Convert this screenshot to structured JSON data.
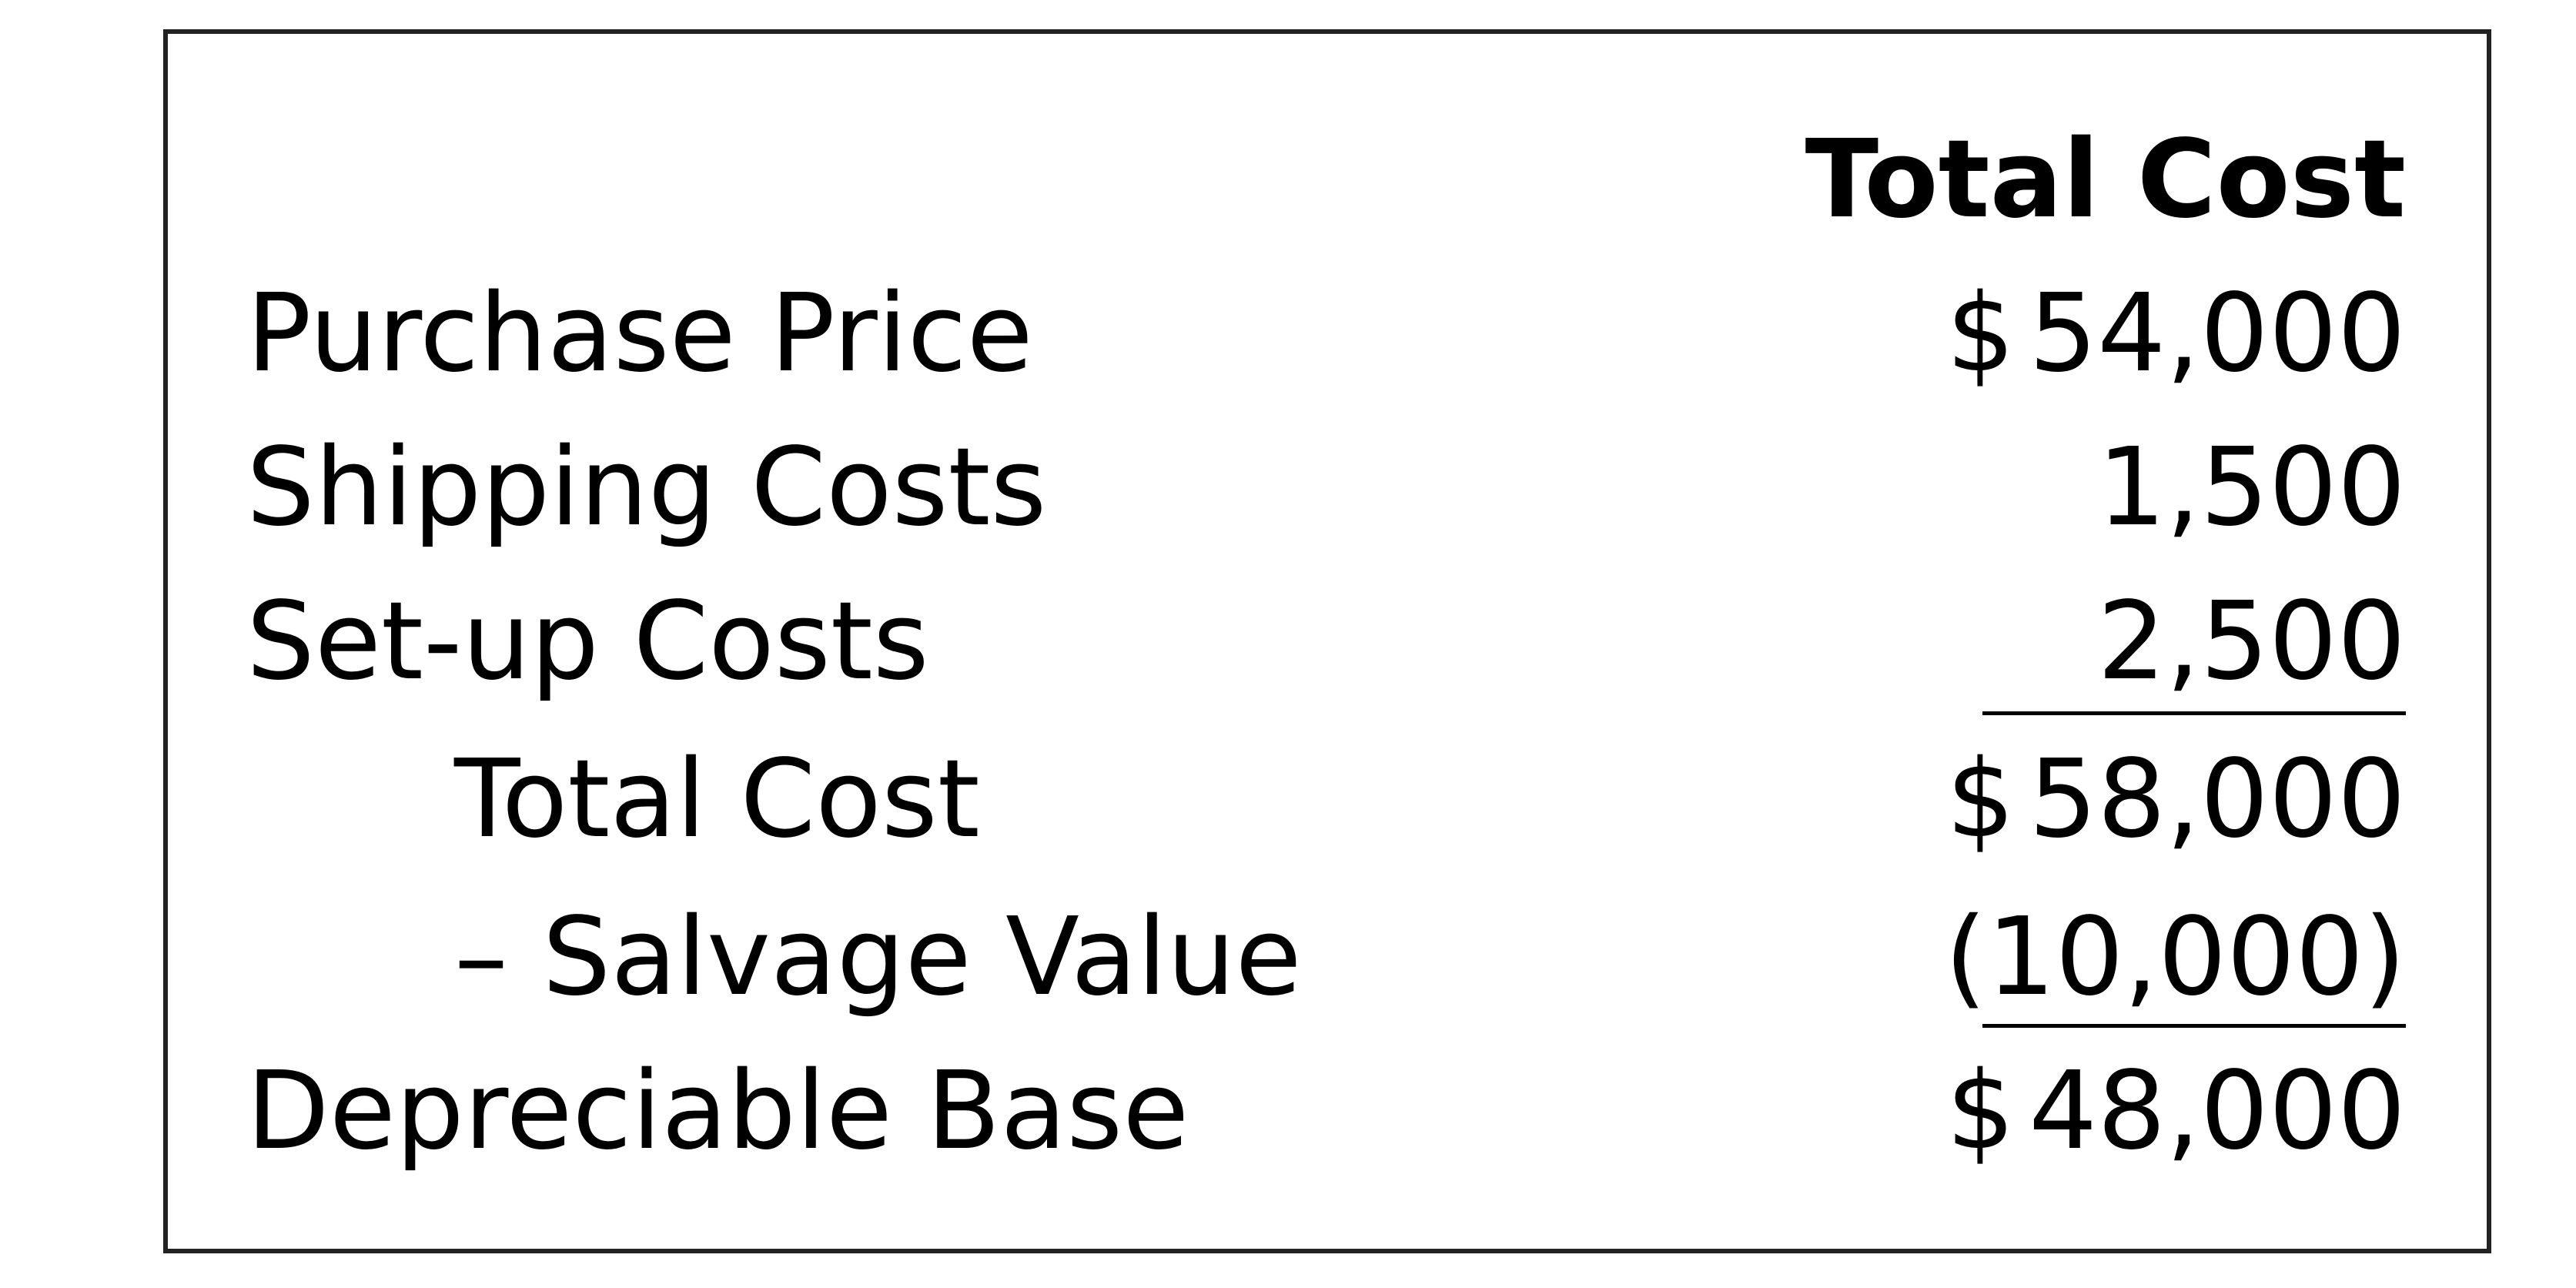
{
  "header": {
    "column_title": "Total Cost"
  },
  "rows": [
    {
      "label": "Purchase Price",
      "currency": "$",
      "amount": "54,000"
    },
    {
      "label": "Shipping Costs",
      "currency": "",
      "amount": "1,500"
    },
    {
      "label": "Set-up Costs",
      "currency": "",
      "amount": "2,500"
    },
    {
      "label": "Total Cost",
      "currency": "$",
      "amount": "58,000"
    },
    {
      "label": "– Salvage Value",
      "currency": "",
      "amount": "(10,000)"
    },
    {
      "label": "Depreciable Base",
      "currency": "$",
      "amount": "48,000"
    }
  ]
}
